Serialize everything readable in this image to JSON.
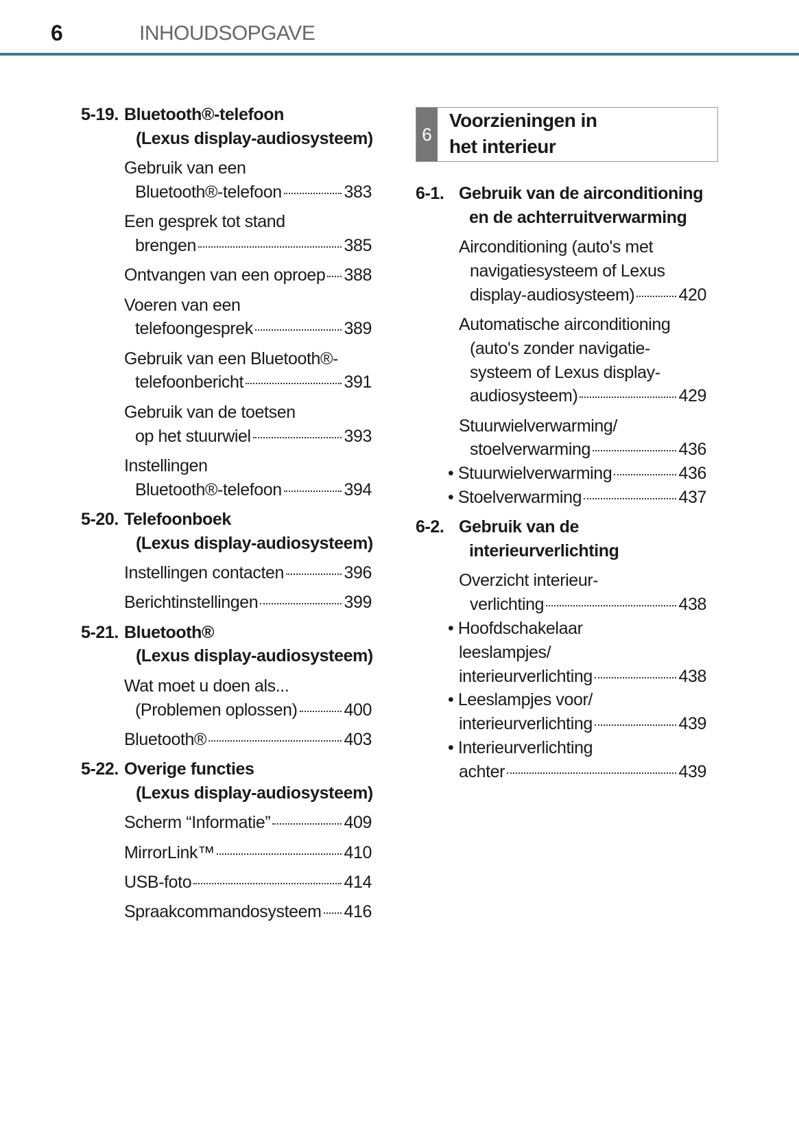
{
  "header": {
    "page_number": "6",
    "title": "INHOUDSOPGAVE",
    "rule_color": "#3f7a8a"
  },
  "chapter": {
    "number": "6",
    "title_lines": [
      "Voorzieningen in",
      "het interieur"
    ]
  },
  "left": [
    {
      "type": "heading",
      "num": "5-19.",
      "lines": [
        "Bluetooth®-telefoon",
        "(Lexus display-audiosysteem)"
      ]
    },
    {
      "type": "entry",
      "lines": [
        "Gebruik van een",
        "Bluetooth®-telefoon"
      ],
      "page": "383"
    },
    {
      "type": "entry",
      "lines": [
        "Een gesprek tot stand",
        "brengen"
      ],
      "page": "385"
    },
    {
      "type": "entry",
      "lines": [
        "Ontvangen van een oproep"
      ],
      "page": "388"
    },
    {
      "type": "entry",
      "lines": [
        "Voeren van een",
        "telefoongesprek"
      ],
      "page": "389"
    },
    {
      "type": "entry",
      "lines": [
        "Gebruik van een Bluetooth®-",
        "telefoonbericht"
      ],
      "page": "391"
    },
    {
      "type": "entry",
      "lines": [
        "Gebruik van de toetsen",
        "op het stuurwiel"
      ],
      "page": "393"
    },
    {
      "type": "entry",
      "lines": [
        "Instellingen",
        "Bluetooth®-telefoon"
      ],
      "page": "394"
    },
    {
      "type": "heading",
      "num": "5-20.",
      "lines": [
        "Telefoonboek",
        "(Lexus display-audiosysteem)"
      ]
    },
    {
      "type": "entry",
      "lines": [
        "Instellingen contacten"
      ],
      "page": "396"
    },
    {
      "type": "entry",
      "lines": [
        "Berichtinstellingen"
      ],
      "page": "399"
    },
    {
      "type": "heading",
      "num": "5-21.",
      "lines": [
        "Bluetooth®",
        "(Lexus display-audiosysteem)"
      ]
    },
    {
      "type": "entry",
      "lines": [
        "Wat moet u doen als...",
        "(Problemen oplossen)"
      ],
      "page": "400"
    },
    {
      "type": "entry",
      "lines": [
        "Bluetooth®"
      ],
      "page": "403"
    },
    {
      "type": "heading",
      "num": "5-22.",
      "lines": [
        "Overige functies",
        "(Lexus display-audiosysteem)"
      ]
    },
    {
      "type": "entry",
      "lines": [
        "Scherm “Informatie”"
      ],
      "page": "409"
    },
    {
      "type": "entry",
      "lines": [
        "MirrorLink™"
      ],
      "page": "410"
    },
    {
      "type": "entry",
      "lines": [
        "USB-foto"
      ],
      "page": "414"
    },
    {
      "type": "entry",
      "lines": [
        "Spraakcommandosysteem"
      ],
      "page": "416"
    }
  ],
  "right": [
    {
      "type": "heading",
      "num": "6-1.",
      "lines": [
        "Gebruik van de airconditioning",
        "en de achterruitverwarming"
      ]
    },
    {
      "type": "entry",
      "lines": [
        "Airconditioning (auto's met",
        "navigatiesysteem of Lexus",
        "display-audiosysteem)"
      ],
      "page": "420"
    },
    {
      "type": "entry",
      "lines": [
        "Automatische airconditioning",
        "(auto's zonder navigatie-",
        "systeem of Lexus display-",
        "audiosysteem)"
      ],
      "page": "429"
    },
    {
      "type": "entry",
      "lines": [
        "Stuurwielverwarming/",
        "stoelverwarming"
      ],
      "page": "436"
    },
    {
      "type": "bullet",
      "lines": [
        "• Stuurwielverwarming"
      ],
      "page": "436"
    },
    {
      "type": "bullet",
      "lines": [
        "• Stoelverwarming"
      ],
      "page": "437"
    },
    {
      "type": "heading",
      "num": "6-2.",
      "lines": [
        "Gebruik van de",
        "interieurverlichting"
      ]
    },
    {
      "type": "entry",
      "lines": [
        "Overzicht interieur-",
        "verlichting"
      ],
      "page": "438"
    },
    {
      "type": "bullet",
      "lines": [
        "• Hoofdschakelaar",
        "leeslampjes/",
        "interieurverlichting"
      ],
      "page": "438"
    },
    {
      "type": "bullet",
      "lines": [
        "• Leeslampjes voor/",
        "interieurverlichting"
      ],
      "page": "439"
    },
    {
      "type": "bullet",
      "lines": [
        "• Interieurverlichting",
        "achter"
      ],
      "page": "439"
    }
  ]
}
